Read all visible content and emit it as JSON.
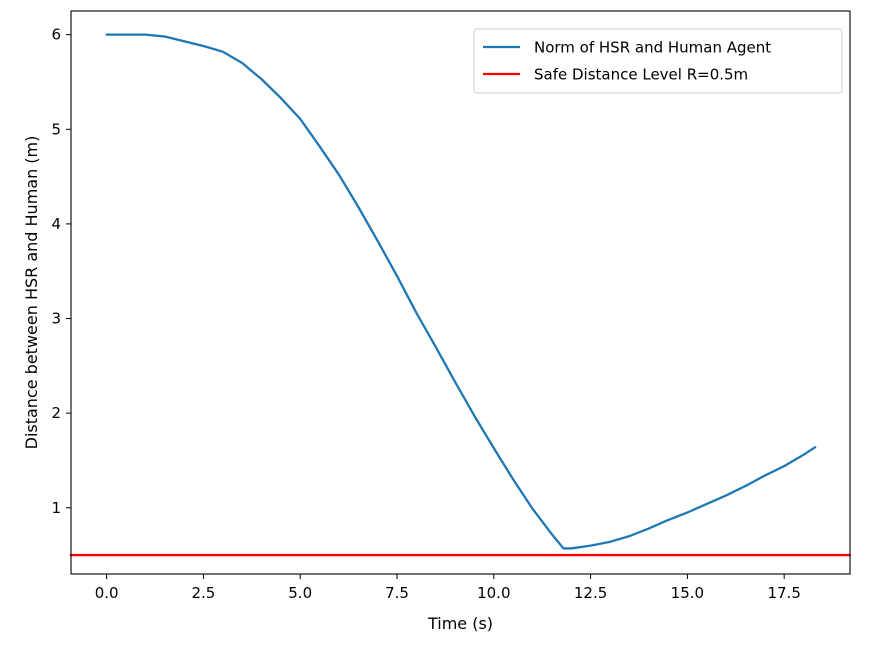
{
  "chart_data": {
    "type": "line",
    "title": "",
    "xlabel": "Time (s)",
    "ylabel": "Distance between HSR and Human (m)",
    "xlim": [
      -0.92,
      19.2
    ],
    "ylim": [
      0.3,
      6.25
    ],
    "x_ticks": [
      0.0,
      2.5,
      5.0,
      7.5,
      10.0,
      12.5,
      15.0,
      17.5
    ],
    "x_tick_labels": [
      "0.0",
      "2.5",
      "5.0",
      "7.5",
      "10.0",
      "12.5",
      "15.0",
      "17.5"
    ],
    "y_ticks": [
      1,
      2,
      3,
      4,
      5,
      6
    ],
    "y_tick_labels": [
      "1",
      "2",
      "3",
      "4",
      "5",
      "6"
    ],
    "grid": false,
    "legend_position": "top-right",
    "series": [
      {
        "name": "Norm of HSR and Human Agent",
        "color": "#1f77b4",
        "x": [
          0.0,
          0.5,
          1.0,
          1.5,
          2.0,
          2.5,
          3.0,
          3.5,
          4.0,
          4.5,
          5.0,
          5.5,
          6.0,
          6.5,
          7.0,
          7.5,
          8.0,
          8.5,
          9.0,
          9.5,
          10.0,
          10.5,
          11.0,
          11.5,
          11.8,
          12.0,
          12.5,
          13.0,
          13.5,
          14.0,
          14.5,
          15.0,
          15.5,
          16.0,
          16.5,
          17.0,
          17.5,
          18.0,
          18.3
        ],
        "y": [
          6.0,
          6.0,
          6.0,
          5.98,
          5.93,
          5.88,
          5.82,
          5.7,
          5.53,
          5.33,
          5.11,
          4.82,
          4.52,
          4.18,
          3.82,
          3.45,
          3.06,
          2.7,
          2.33,
          1.97,
          1.63,
          1.3,
          0.99,
          0.72,
          0.57,
          0.57,
          0.6,
          0.64,
          0.7,
          0.78,
          0.87,
          0.95,
          1.04,
          1.13,
          1.23,
          1.34,
          1.44,
          1.56,
          1.64
        ]
      },
      {
        "name": "Safe Distance Level R=0.5m",
        "color": "#ff0000",
        "x": [
          -0.92,
          19.2
        ],
        "y": [
          0.5,
          0.5
        ]
      }
    ]
  }
}
